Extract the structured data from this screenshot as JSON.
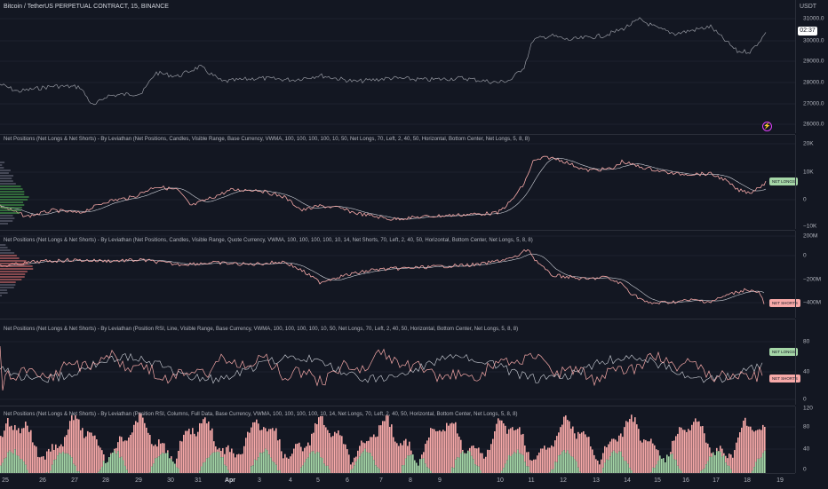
{
  "main": {
    "title": "Bitcoin / TetherUS PERPETUAL CONTRACT, 15, BINANCE",
    "currency": "USDT",
    "price_tag": "02:37",
    "flash_icon": "⚡",
    "ticks": [
      "31000.0",
      "30000.0",
      "29000.0",
      "28000.0",
      "27000.0",
      "26000.0"
    ]
  },
  "pane1": {
    "title": "Net Positions (Net Longs & Net Shorts) - By Leviathan (Net Positions, Candles, Visible Range, Base Currency, VWMA, 100, 100, 100, 100, 10, 50, Net Longs, 70, Left, 2, 40, 50, Horizontal, Bottom Center, Net Longs, 5, 8, 8)",
    "badge": "NET LONGS",
    "ticks": [
      "20K",
      "10K",
      "0",
      "−10K"
    ]
  },
  "pane2": {
    "title": "Net Positions (Net Longs & Net Shorts) - By Leviathan (Net Positions, Candles, Visible Range, Quote Currency, VWMA, 100, 100, 100, 100, 10, 14, Net Shorts, 70, Left, 2, 40, 50, Horizontal, Bottom Center, Net Longs, 5, 8, 8)",
    "badge": "NET SHORTS",
    "ticks": [
      "200M",
      "0",
      "−200M",
      "−400M"
    ]
  },
  "pane3": {
    "title": "Net Positions (Net Longs & Net Shorts) - By Leviathan (Position RSI, Line, Visible Range, Base Currency, VWMA, 100, 100, 100, 100, 10, 50, Net Longs, 70, Left, 2, 40, 50, Horizontal, Bottom Center, Net Longs, 5, 8, 8)",
    "badge_long": "NET LONGS",
    "badge_short": "NET SHORTS",
    "ticks": [
      "80",
      "40",
      "0"
    ]
  },
  "pane4": {
    "title": "Net Positions (Net Longs & Net Shorts) - By Leviathan (Position RSI, Columns, Full Data, Base Currency, VWMA, 100, 100, 100, 100, 10, 14, Net Longs, 70, Left, 2, 40, 50, Horizontal, Bottom Center, Net Longs, 5, 8, 8)",
    "ticks": [
      "120",
      "80",
      "40",
      "0"
    ]
  },
  "xaxis": [
    "25",
    "26",
    "27",
    "28",
    "29",
    "30",
    "31",
    "Apr",
    "3",
    "4",
    "5",
    "6",
    "7",
    "8",
    "9",
    "10",
    "11",
    "12",
    "13",
    "14",
    "15",
    "16",
    "17",
    "18",
    "19"
  ],
  "colors": {
    "bg": "#131722",
    "long": "#a5d6a7",
    "short": "#f7a9a8",
    "price": "#9598a1",
    "ma": "#d1d4dc"
  }
}
